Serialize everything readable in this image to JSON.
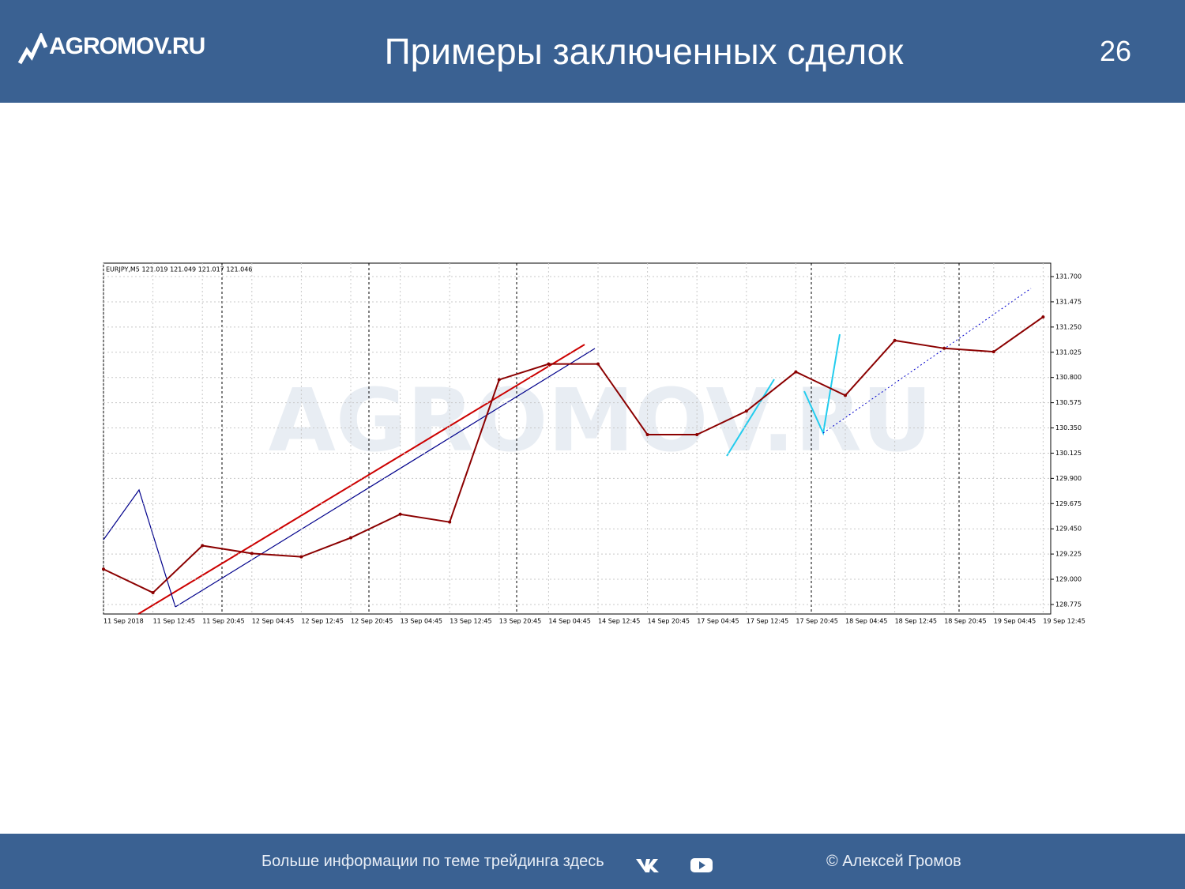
{
  "header": {
    "logo": "AGROMOV.RU",
    "title": "Примеры заключенных сделок",
    "page_number": "26"
  },
  "chart_data": {
    "type": "line",
    "symbol_label": "EURJPY,M5  121.019 121.049 121.017 121.046",
    "watermark": "AGROMOV.RU",
    "categories": [
      "11 Sep 2018",
      "11 Sep 12:45",
      "11 Sep 20:45",
      "12 Sep 04:45",
      "12 Sep 12:45",
      "12 Sep 20:45",
      "13 Sep 04:45",
      "13 Sep 12:45",
      "13 Sep 20:45",
      "14 Sep 04:45",
      "14 Sep 12:45",
      "14 Sep 20:45",
      "17 Sep 04:45",
      "17 Sep 12:45",
      "17 Sep 20:45",
      "18 Sep 04:45",
      "18 Sep 12:45",
      "18 Sep 20:45",
      "19 Sep 04:45",
      "19 Sep 12:45"
    ],
    "values": [
      129.09,
      128.88,
      129.3,
      129.23,
      129.2,
      129.37,
      129.58,
      129.51,
      130.78,
      130.92,
      130.92,
      130.29,
      130.29,
      130.5,
      130.85,
      130.64,
      131.13,
      131.06,
      131.03,
      131.34
    ],
    "color": "#8b0000",
    "ylim": [
      128.69,
      131.82
    ],
    "yticks": [
      128.775,
      {
        "value": 129,
        "label": "129.000"
      },
      129.225,
      {
        "value": 129.45,
        "label": "129.450"
      },
      129.675,
      {
        "value": 129.9,
        "label": "129.900"
      },
      130.125,
      {
        "value": 130.35,
        "label": "130.350"
      },
      130.575,
      {
        "value": 130.8,
        "label": "130.800"
      },
      131.025,
      {
        "value": 131.25,
        "label": "131.250"
      },
      131.475,
      {
        "value": 131.7,
        "label": "131.700"
      }
    ],
    "grid": true
  },
  "footer": {
    "info": "Больше информации по теме трейдинга здесь",
    "copyright": "© Алексей Громов"
  }
}
